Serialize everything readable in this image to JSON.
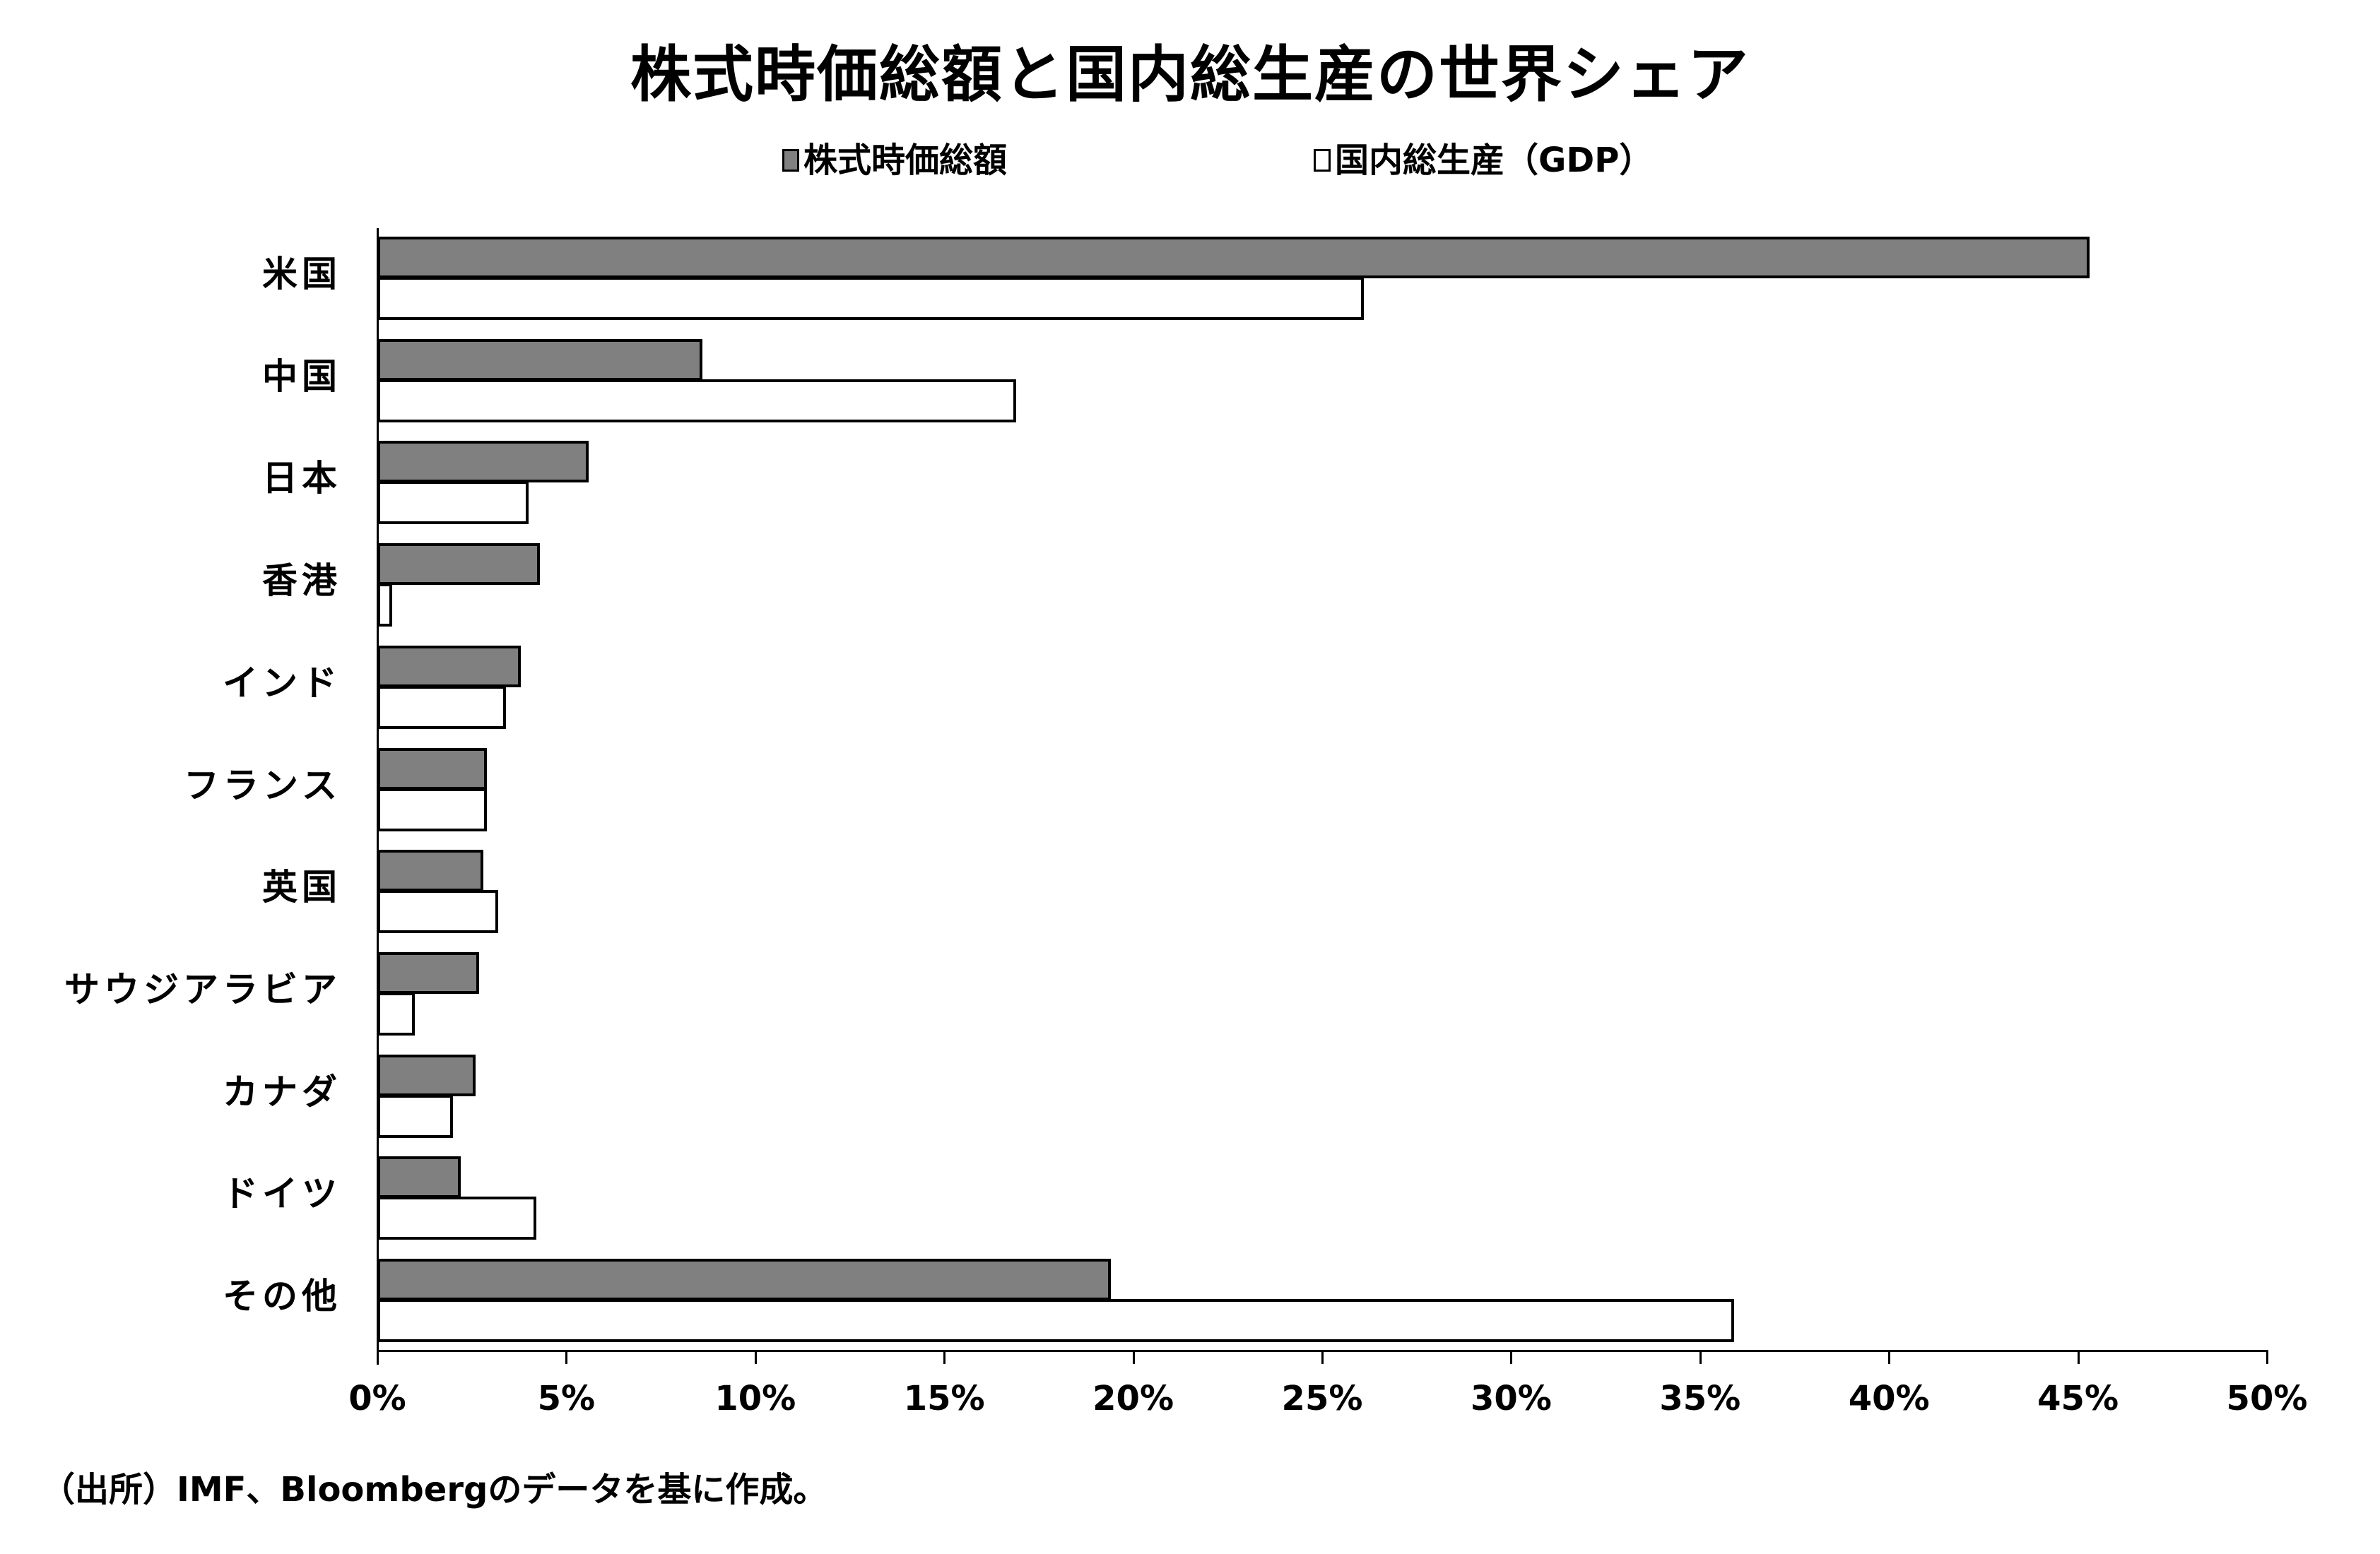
{
  "title": "株式時価総額と国内総生産の世界シェア",
  "legend": [
    {
      "label": "株式時価総額",
      "color": "#808080"
    },
    {
      "label": "国内総生産（GDP）",
      "color": "#ffffff"
    }
  ],
  "source": "（出所）IMF、Bloombergのデータを基に作成。",
  "x_ticks": [
    "0%",
    "5%",
    "10%",
    "15%",
    "20%",
    "25%",
    "30%",
    "35%",
    "40%",
    "45%",
    "50%"
  ],
  "chart_data": {
    "type": "bar",
    "orientation": "horizontal",
    "title": "株式時価総額と国内総生産の世界シェア",
    "categories": [
      "米国",
      "中国",
      "日本",
      "香港",
      "インド",
      "フランス",
      "英国",
      "サウジアラビア",
      "カナダ",
      "ドイツ",
      "その他"
    ],
    "series": [
      {
        "name": "株式時価総額",
        "color": "#808080",
        "values": [
          45.3,
          8.6,
          5.6,
          4.3,
          3.8,
          2.9,
          2.8,
          2.7,
          2.6,
          2.2,
          19.4
        ]
      },
      {
        "name": "国内総生産（GDP）",
        "color": "#ffffff",
        "values": [
          26.1,
          16.9,
          4.0,
          0.4,
          3.4,
          2.9,
          3.2,
          1.0,
          2.0,
          4.2,
          35.9
        ]
      }
    ],
    "xlabel": "",
    "ylabel": "",
    "xlim": [
      0,
      50
    ],
    "x_tick_format": "percent",
    "x_ticks": [
      0,
      5,
      10,
      15,
      20,
      25,
      30,
      35,
      40,
      45,
      50
    ],
    "grid": false,
    "legend_position": "top",
    "source_note": "（出所）IMF、Bloombergのデータを基に作成。"
  }
}
